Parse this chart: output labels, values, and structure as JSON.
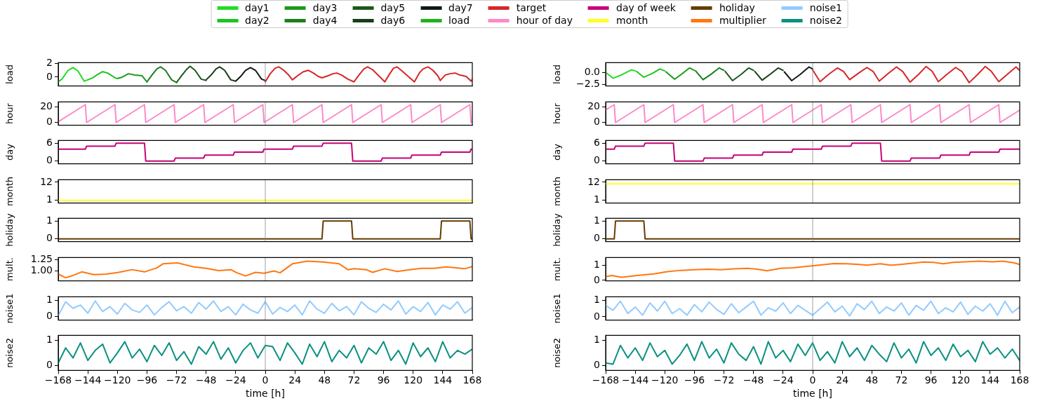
{
  "chart_data": [
    {
      "type": "line",
      "ylabel": "load",
      "legend": "top",
      "xlim": [
        -168,
        168
      ],
      "tick_labels": "y",
      "ylim": [
        -1.3,
        2.12
      ],
      "yticks": [
        0,
        2
      ],
      "ref_lines": [
        {
          "axis": "x",
          "value": 0,
          "color": "#888888"
        }
      ],
      "series": [
        {
          "name": "day1",
          "color": "#22dd22",
          "x": [
            -168,
            -165,
            -160,
            -156,
            -152,
            -147,
            -144
          ],
          "values": [
            -0.7,
            -0.3,
            1.0,
            1.4,
            0.9,
            -0.6,
            -0.4
          ]
        },
        {
          "name": "day2",
          "color": "#1ec41e",
          "x": [
            -144,
            -140,
            -136,
            -132,
            -128,
            -122,
            -120
          ],
          "values": [
            -0.4,
            -0.1,
            0.4,
            0.8,
            0.6,
            -0.1,
            -0.2
          ]
        },
        {
          "name": "day3",
          "color": "#1a9a1a",
          "x": [
            -120,
            -116,
            -111,
            -106,
            -100,
            -96
          ],
          "values": [
            -0.2,
            0.0,
            0.5,
            0.3,
            0.2,
            -0.7
          ]
        },
        {
          "name": "day4",
          "color": "#1b7f1b",
          "x": [
            -96,
            -92,
            -88,
            -85,
            -81,
            -76,
            -72
          ],
          "values": [
            -0.7,
            0.3,
            1.2,
            1.5,
            1.0,
            -0.4,
            -0.8
          ]
        },
        {
          "name": "day5",
          "color": "#1a5a1a",
          "x": [
            -72,
            -68,
            -64,
            -61,
            -57,
            -52,
            -48
          ],
          "values": [
            -0.8,
            0.2,
            1.1,
            1.6,
            1.0,
            -0.3,
            -0.5
          ]
        },
        {
          "name": "day6",
          "color": "#163f16",
          "x": [
            -48,
            -44,
            -40,
            -37,
            -33,
            -28,
            -24
          ],
          "values": [
            -0.4,
            0.3,
            1.2,
            1.5,
            1.0,
            -0.4,
            -0.6
          ]
        },
        {
          "name": "day7",
          "color": "#111a11",
          "x": [
            -24,
            -20,
            -16,
            -12,
            -8,
            -3,
            0
          ],
          "values": [
            -0.6,
            0.1,
            1.0,
            1.4,
            1.0,
            -0.3,
            -0.5
          ]
        },
        {
          "name": "load",
          "color": "#1db31d"
        },
        {
          "name": "target",
          "color": "#d62728",
          "x": [
            0,
            4,
            8,
            11,
            15,
            19,
            22,
            27,
            31,
            35,
            39,
            43,
            46,
            51,
            55,
            58,
            62,
            67,
            72,
            76,
            80,
            83,
            87,
            92,
            97,
            101,
            104,
            107,
            111,
            116,
            121,
            125,
            128,
            132,
            136,
            140,
            142,
            146,
            150,
            154,
            158,
            163,
            167,
            168
          ],
          "values": [
            -0.7,
            0.5,
            1.3,
            1.5,
            1.0,
            0.3,
            -0.4,
            0.3,
            0.8,
            1.0,
            0.6,
            0.1,
            -0.1,
            0.2,
            0.5,
            0.6,
            0.3,
            -0.3,
            -0.7,
            0.3,
            1.2,
            1.5,
            1.1,
            0.2,
            -0.7,
            0.5,
            1.3,
            1.5,
            0.9,
            0.1,
            -0.7,
            0.6,
            1.2,
            1.5,
            1.0,
            0.2,
            -0.5,
            0.3,
            0.5,
            0.6,
            0.3,
            0.1,
            -0.6,
            -0.3
          ]
        }
      ]
    },
    {
      "type": "line",
      "ylabel": "hour",
      "xlim": [
        -168,
        168
      ],
      "tick_labels": "y",
      "ylim": [
        -3.5,
        26.5
      ],
      "yticks": [
        0,
        20
      ],
      "ref_lines": [
        {
          "axis": "x",
          "value": 0,
          "color": "#888888"
        }
      ],
      "series": [
        {
          "name": "hour of day",
          "color": "#ff88c8",
          "x": [
            -168,
            -146,
            -145,
            -122,
            -121,
            -98,
            -97,
            -74,
            -73,
            -50,
            -49,
            -26,
            -25,
            -2,
            -1,
            22,
            23,
            46,
            47,
            70,
            71,
            94,
            95,
            118,
            119,
            142,
            143,
            166,
            167,
            168
          ],
          "values": [
            1,
            23,
            0,
            23,
            0,
            23,
            0,
            23,
            0,
            23,
            0,
            23,
            0,
            23,
            0,
            23,
            0,
            23,
            0,
            23,
            0,
            23,
            0,
            23,
            0,
            23,
            0,
            23,
            0,
            1
          ]
        }
      ]
    },
    {
      "type": "line",
      "ylabel": "day",
      "xlim": [
        -168,
        168
      ],
      "tick_labels": "y",
      "ylim": [
        -0.9,
        6.9
      ],
      "yticks": [
        0,
        6
      ],
      "ref_lines": [
        {
          "axis": "x",
          "value": 0,
          "color": "#888888"
        }
      ],
      "series": [
        {
          "name": "day of week",
          "color": "#c9007a",
          "x": [
            -168,
            -146,
            -145,
            -122,
            -121,
            -98,
            -97,
            -74,
            -73,
            -50,
            -49,
            -26,
            -25,
            -2,
            -1,
            22,
            23,
            46,
            47,
            70,
            71,
            94,
            95,
            118,
            119,
            142,
            143,
            166,
            167,
            168
          ],
          "values": [
            4,
            4,
            5,
            5,
            6,
            6,
            0,
            0,
            1,
            1,
            2,
            2,
            3,
            3,
            4,
            4,
            5,
            5,
            6,
            6,
            0,
            0,
            1,
            1,
            2,
            2,
            3,
            3,
            4,
            4
          ]
        }
      ]
    },
    {
      "type": "line",
      "ylabel": "month",
      "xlim": [
        -168,
        168
      ],
      "tick_labels": "y",
      "ylim": [
        -0.6,
        13.5
      ],
      "yticks": [
        1,
        12
      ],
      "ref_lines": [
        {
          "axis": "x",
          "value": 0,
          "color": "#888888"
        }
      ],
      "series": [
        {
          "name": "month",
          "color": "#ffff22",
          "x": [
            -168,
            168
          ],
          "values": [
            1,
            1
          ]
        }
      ]
    },
    {
      "type": "line",
      "ylabel": "holiday",
      "xlim": [
        -168,
        168
      ],
      "tick_labels": "y",
      "ylim": [
        -0.15,
        1.15
      ],
      "yticks": [
        0,
        1
      ],
      "ref_lines": [
        {
          "axis": "x",
          "value": 0,
          "color": "#888888"
        }
      ],
      "series": [
        {
          "name": "holiday",
          "color": "#653c00",
          "x": [
            -168,
            46,
            47,
            70,
            71,
            142,
            143,
            166,
            167,
            168
          ],
          "values": [
            0,
            0,
            1,
            1,
            0,
            0,
            1,
            1,
            0,
            0
          ]
        }
      ]
    },
    {
      "type": "line",
      "ylabel": "mult.",
      "xlim": [
        -168,
        168
      ],
      "tick_labels": "y",
      "ylim": [
        0.78,
        1.3
      ],
      "yticks": [
        {
          "value": 1,
          "label": "1.00"
        },
        {
          "value": 1.25,
          "label": "1.25"
        }
      ],
      "ref_lines": [
        {
          "axis": "x",
          "value": 0,
          "color": "#888888"
        }
      ],
      "series": [
        {
          "name": "multiplier",
          "color": "#ff7711",
          "x": [
            -168,
            -162,
            -157,
            -149,
            -139,
            -129,
            -119,
            -108,
            -98,
            -88,
            -83,
            -71,
            -58,
            -48,
            -38,
            -28,
            -23,
            -16,
            -8,
            -1,
            7,
            12,
            22,
            34,
            47,
            60,
            67,
            72,
            82,
            87,
            97,
            107,
            117,
            127,
            137,
            147,
            162,
            168
          ],
          "values": [
            0.93,
            0.85,
            0.89,
            0.98,
            0.92,
            0.93,
            0.97,
            1.03,
            0.98,
            1.07,
            1.16,
            1.18,
            1.09,
            1.06,
            1.01,
            1.03,
            0.96,
            0.89,
            0.97,
            0.95,
            1.0,
            0.96,
            1.16,
            1.22,
            1.2,
            1.16,
            1.03,
            1.05,
            1.03,
            0.97,
            1.05,
            0.99,
            1.03,
            1.06,
            1.06,
            1.09,
            1.05,
            1.1
          ]
        }
      ]
    },
    {
      "type": "line",
      "ylabel": "noise1",
      "xlim": [
        -168,
        168
      ],
      "tick_labels": "y",
      "ylim": [
        -0.22,
        1.2
      ],
      "yticks": [
        0,
        1
      ],
      "ref_lines": [
        {
          "axis": "x",
          "value": 0,
          "color": "#888888"
        }
      ],
      "x": [
        -168,
        -162,
        -156,
        -150,
        -144,
        -138,
        -132,
        -126,
        -120,
        -114,
        -108,
        -102,
        -96,
        -90,
        -84,
        -78,
        -72,
        -66,
        -60,
        -54,
        -48,
        -42,
        -36,
        -30,
        -24,
        -18,
        -12,
        -6,
        0,
        6,
        12,
        18,
        24,
        30,
        36,
        42,
        48,
        54,
        60,
        66,
        72,
        78,
        84,
        90,
        96,
        102,
        108,
        114,
        120,
        126,
        132,
        138,
        144,
        150,
        156,
        162,
        168
      ],
      "series": [
        {
          "name": "noise1",
          "color": "#92cbff",
          "values": [
            0.05,
            0.9,
            0.5,
            0.7,
            0.2,
            0.95,
            0.3,
            0.6,
            0.15,
            0.8,
            0.4,
            0.25,
            0.7,
            0.1,
            0.55,
            0.9,
            0.35,
            0.6,
            0.2,
            0.85,
            0.45,
            0.95,
            0.3,
            0.6,
            0.1,
            0.75,
            0.4,
            0.2,
            0.9,
            0.15,
            0.55,
            0.3,
            0.7,
            0.1,
            0.95,
            0.45,
            0.2,
            0.8,
            0.35,
            0.6,
            0.1,
            0.9,
            0.5,
            0.25,
            0.75,
            0.4,
            0.95,
            0.15,
            0.6,
            0.3,
            0.85,
            0.1,
            0.7,
            0.45,
            0.9,
            0.2,
            0.55
          ]
        }
      ]
    },
    {
      "type": "line",
      "ylabel": "noise2",
      "xlabel": "time [h]",
      "xlim": [
        -168,
        168
      ],
      "xticks": [
        {
          "value": -168,
          "label": "−168"
        },
        {
          "value": -144,
          "label": "−144"
        },
        {
          "value": -120,
          "label": "−120"
        },
        {
          "value": -96,
          "label": "−96"
        },
        {
          "value": -72,
          "label": "−72"
        },
        {
          "value": -48,
          "label": "−48"
        },
        {
          "value": -24,
          "label": "−24"
        },
        0,
        24,
        48,
        72,
        96,
        120,
        144,
        168
      ],
      "ylim": [
        -0.2,
        1.2
      ],
      "yticks": [
        0,
        1
      ],
      "ref_lines": [
        {
          "axis": "x",
          "value": 0,
          "color": "#888888"
        }
      ],
      "x": [
        -168,
        -162,
        -156,
        -150,
        -144,
        -138,
        -132,
        -126,
        -120,
        -114,
        -108,
        -102,
        -96,
        -90,
        -84,
        -78,
        -72,
        -66,
        -60,
        -54,
        -48,
        -42,
        -36,
        -30,
        -24,
        -18,
        -12,
        -6,
        0,
        6,
        12,
        18,
        24,
        30,
        36,
        42,
        48,
        54,
        60,
        66,
        72,
        78,
        84,
        90,
        96,
        102,
        108,
        114,
        120,
        126,
        132,
        138,
        144,
        150,
        156,
        162,
        168
      ],
      "series": [
        {
          "name": "noise2",
          "color": "#0a9080",
          "values": [
            0.1,
            0.7,
            0.3,
            0.9,
            0.2,
            0.6,
            0.85,
            0.1,
            0.5,
            0.95,
            0.3,
            0.65,
            0.15,
            0.8,
            0.4,
            0.9,
            0.2,
            0.55,
            0.05,
            0.75,
            0.45,
            0.95,
            0.25,
            0.7,
            0.1,
            0.6,
            0.9,
            0.3,
            0.8,
            0.75,
            0.2,
            0.9,
            0.5,
            0.05,
            0.85,
            0.35,
            0.95,
            0.15,
            0.6,
            0.3,
            0.8,
            0.1,
            0.7,
            0.45,
            0.95,
            0.2,
            0.6,
            0.05,
            0.9,
            0.35,
            0.7,
            0.15,
            0.95,
            0.3,
            0.6,
            0.45,
            0.65
          ]
        }
      ]
    },
    {
      "type": "line",
      "ylabel": "load",
      "xlim": [
        -168,
        168
      ],
      "tick_labels": "y",
      "ylim": [
        -2.78,
        1.98
      ],
      "yticks": [
        {
          "value": -2.5,
          "label": "−2.5"
        },
        {
          "value": 0,
          "label": "0.0"
        }
      ],
      "ref_lines": [
        {
          "axis": "x",
          "value": 0,
          "color": "#888888"
        }
      ],
      "series": [
        {
          "color": "#22dd22",
          "x": [
            -168,
            -162,
            -155,
            -147,
            -144
          ],
          "values": [
            0.0,
            -1.2,
            -0.5,
            0.5,
            0.3
          ]
        },
        {
          "color": "#1ec41e",
          "x": [
            -143,
            -137,
            -130,
            -124,
            -120
          ],
          "values": [
            0.2,
            -1.0,
            -0.2,
            0.7,
            0.3
          ]
        },
        {
          "color": "#1a9a1a",
          "x": [
            -119,
            -112,
            -106,
            -100,
            -96
          ],
          "values": [
            0.1,
            -1.4,
            -0.3,
            0.9,
            0.4
          ]
        },
        {
          "color": "#1b7f1b",
          "x": [
            -95,
            -89,
            -82,
            -76,
            -72
          ],
          "values": [
            0.3,
            -1.5,
            -0.3,
            0.9,
            0.4
          ]
        },
        {
          "color": "#1a5a1a",
          "x": [
            -71,
            -65,
            -58,
            -52,
            -48
          ],
          "values": [
            0.2,
            -1.7,
            -0.4,
            0.9,
            0.4
          ]
        },
        {
          "color": "#163f16",
          "x": [
            -47,
            -41,
            -34,
            -28,
            -24
          ],
          "values": [
            0.2,
            -1.6,
            -0.3,
            0.9,
            0.4
          ]
        },
        {
          "color": "#111a11",
          "x": [
            -23,
            -17,
            -10,
            -3,
            0
          ],
          "values": [
            0.1,
            -1.7,
            -0.4,
            1.1,
            0.7
          ]
        },
        {
          "color": "#d62728",
          "x": [
            0,
            6,
            13,
            20,
            25,
            30,
            37,
            44,
            49,
            54,
            61,
            68,
            73,
            79,
            86,
            92,
            97,
            102,
            109,
            116,
            121,
            127,
            134,
            140,
            145,
            151,
            158,
            165,
            168
          ],
          "values": [
            0.5,
            -1.9,
            -0.4,
            0.9,
            0.2,
            -1.5,
            -0.2,
            1.0,
            0.2,
            -1.8,
            -0.3,
            1.1,
            0.2,
            -2.0,
            -0.4,
            1.2,
            0.2,
            -1.9,
            -0.4,
            1.0,
            0.2,
            -2.1,
            -0.4,
            1.2,
            0.2,
            -1.9,
            -0.4,
            1.1,
            0.4
          ]
        }
      ]
    },
    {
      "type": "line",
      "ylabel": "hour",
      "xlim": [
        -168,
        168
      ],
      "tick_labels": "y",
      "ylim": [
        -3.5,
        26.5
      ],
      "yticks": [
        0,
        20
      ],
      "ref_lines": [
        {
          "axis": "x",
          "value": 0,
          "color": "#888888"
        }
      ],
      "series": [
        {
          "color": "#ff88c8",
          "x": [
            -168,
            -161,
            -160,
            -137,
            -136,
            -113,
            -112,
            -89,
            -88,
            -65,
            -64,
            -41,
            -40,
            -17,
            -16,
            7,
            8,
            31,
            32,
            55,
            56,
            79,
            80,
            103,
            104,
            127,
            128,
            151,
            152,
            168
          ],
          "values": [
            16,
            23,
            0,
            23,
            0,
            23,
            0,
            23,
            0,
            23,
            0,
            23,
            0,
            23,
            0,
            23,
            0,
            23,
            0,
            23,
            0,
            23,
            0,
            23,
            0,
            23,
            0,
            23,
            0,
            16
          ]
        }
      ]
    },
    {
      "type": "line",
      "ylabel": "day",
      "xlim": [
        -168,
        168
      ],
      "tick_labels": "y",
      "ylim": [
        -0.9,
        6.9
      ],
      "yticks": [
        0,
        6
      ],
      "ref_lines": [
        {
          "axis": "x",
          "value": 0,
          "color": "#888888"
        }
      ],
      "series": [
        {
          "color": "#c9007a",
          "x": [
            -168,
            -161,
            -160,
            -137,
            -136,
            -113,
            -112,
            -89,
            -88,
            -65,
            -64,
            -41,
            -40,
            -17,
            -16,
            7,
            8,
            31,
            32,
            55,
            56,
            79,
            80,
            103,
            104,
            127,
            128,
            151,
            152,
            168
          ],
          "values": [
            4,
            4,
            5,
            5,
            6,
            6,
            0,
            0,
            1,
            1,
            2,
            2,
            3,
            3,
            4,
            4,
            5,
            5,
            6,
            6,
            0,
            0,
            1,
            1,
            2,
            2,
            3,
            3,
            4,
            4
          ]
        }
      ]
    },
    {
      "type": "line",
      "ylabel": "month",
      "xlim": [
        -168,
        168
      ],
      "tick_labels": "y",
      "ylim": [
        -0.6,
        13.5
      ],
      "yticks": [
        1,
        12
      ],
      "ref_lines": [
        {
          "axis": "x",
          "value": 0,
          "color": "#888888"
        }
      ],
      "series": [
        {
          "color": "#ffff22",
          "x": [
            -168,
            168
          ],
          "values": [
            11,
            11
          ]
        }
      ]
    },
    {
      "type": "line",
      "ylabel": "holiday",
      "xlim": [
        -168,
        168
      ],
      "tick_labels": "y",
      "ylim": [
        -0.15,
        1.15
      ],
      "yticks": [
        0,
        1
      ],
      "ref_lines": [
        {
          "axis": "x",
          "value": 0,
          "color": "#888888"
        }
      ],
      "series": [
        {
          "color": "#653c00",
          "x": [
            -168,
            -161,
            -160,
            -137,
            -136,
            168
          ],
          "values": [
            0,
            0,
            1,
            1,
            0,
            0
          ]
        }
      ]
    },
    {
      "type": "line",
      "ylabel": "mult.",
      "xlim": [
        -168,
        168
      ],
      "tick_labels": "y",
      "ylim": [
        -0.03,
        1.5
      ],
      "yticks": [
        0,
        1
      ],
      "ref_lines": [
        {
          "axis": "x",
          "value": 0,
          "color": "#888888"
        }
      ],
      "series": [
        {
          "color": "#ff7711",
          "x": [
            -168,
            -163,
            -155,
            -145,
            -137,
            -129,
            -118,
            -107,
            -96,
            -85,
            -75,
            -64,
            -53,
            -45,
            -37,
            -26,
            -16,
            -5,
            1,
            9,
            17,
            28,
            38,
            44,
            55,
            63,
            71,
            81,
            90,
            98,
            106,
            114,
            124,
            135,
            146,
            154,
            163,
            168
          ],
          "values": [
            0.24,
            0.32,
            0.21,
            0.3,
            0.37,
            0.42,
            0.57,
            0.66,
            0.7,
            0.74,
            0.7,
            0.76,
            0.79,
            0.74,
            0.63,
            0.79,
            0.83,
            0.92,
            0.97,
            1.03,
            1.1,
            1.09,
            1.05,
            1.0,
            1.09,
            1.0,
            1.05,
            1.13,
            1.21,
            1.18,
            1.09,
            1.18,
            1.22,
            1.26,
            1.22,
            1.26,
            1.16,
            1.05
          ]
        }
      ]
    },
    {
      "type": "line",
      "ylabel": "noise1",
      "xlim": [
        -168,
        168
      ],
      "tick_labels": "y",
      "ylim": [
        -0.2,
        1.22
      ],
      "yticks": [
        0,
        1
      ],
      "ref_lines": [
        {
          "axis": "x",
          "value": 0,
          "color": "#888888"
        }
      ],
      "x": [
        -168,
        -162,
        -156,
        -150,
        -144,
        -138,
        -132,
        -126,
        -120,
        -114,
        -108,
        -102,
        -96,
        -90,
        -84,
        -78,
        -72,
        -66,
        -60,
        -54,
        -48,
        -42,
        -36,
        -30,
        -24,
        -18,
        -12,
        -6,
        0,
        6,
        12,
        18,
        24,
        30,
        36,
        42,
        48,
        54,
        60,
        66,
        72,
        78,
        84,
        90,
        96,
        102,
        108,
        114,
        120,
        126,
        132,
        138,
        144,
        150,
        156,
        162,
        168
      ],
      "series": [
        {
          "color": "#92cbff",
          "values": [
            0.7,
            0.4,
            0.95,
            0.2,
            0.6,
            0.1,
            0.85,
            0.35,
            0.95,
            0.2,
            0.5,
            0.1,
            0.75,
            0.3,
            0.9,
            0.45,
            0.15,
            0.8,
            0.25,
            0.6,
            0.95,
            0.1,
            0.55,
            0.35,
            0.85,
            0.2,
            0.7,
            0.4,
            0.1,
            0.5,
            0.9,
            0.3,
            0.65,
            0.05,
            0.8,
            0.45,
            0.95,
            0.2,
            0.6,
            0.35,
            0.85,
            0.1,
            0.7,
            0.4,
            0.95,
            0.2,
            0.55,
            0.3,
            0.9,
            0.15,
            0.65,
            0.35,
            0.8,
            0.1,
            0.95,
            0.25,
            0.6
          ]
        }
      ]
    },
    {
      "type": "line",
      "ylabel": "noise2",
      "xlabel": "time [h]",
      "xlim": [
        -168,
        168
      ],
      "xticks": [
        {
          "value": -168,
          "label": "−168"
        },
        {
          "value": -144,
          "label": "−144"
        },
        {
          "value": -120,
          "label": "−120"
        },
        {
          "value": -96,
          "label": "−96"
        },
        {
          "value": -72,
          "label": "−72"
        },
        {
          "value": -48,
          "label": "−48"
        },
        {
          "value": -24,
          "label": "−24"
        },
        0,
        24,
        48,
        72,
        96,
        120,
        144,
        168
      ],
      "ylim": [
        -0.2,
        1.2
      ],
      "yticks": [
        0,
        1
      ],
      "ref_lines": [
        {
          "axis": "x",
          "value": 0,
          "color": "#888888"
        }
      ],
      "x": [
        -168,
        -162,
        -156,
        -150,
        -144,
        -138,
        -132,
        -126,
        -120,
        -114,
        -108,
        -102,
        -96,
        -90,
        -84,
        -78,
        -72,
        -66,
        -60,
        -54,
        -48,
        -42,
        -36,
        -30,
        -24,
        -18,
        -12,
        -6,
        0,
        6,
        12,
        18,
        24,
        30,
        36,
        42,
        48,
        54,
        60,
        66,
        72,
        78,
        84,
        90,
        96,
        102,
        108,
        114,
        120,
        126,
        132,
        138,
        144,
        150,
        156,
        162,
        168
      ],
      "series": [
        {
          "color": "#0a9080",
          "values": [
            0.1,
            0.05,
            0.8,
            0.3,
            0.7,
            0.2,
            0.9,
            0.35,
            0.6,
            0.05,
            0.4,
            0.85,
            0.2,
            0.95,
            0.3,
            0.65,
            0.1,
            0.9,
            0.45,
            0.2,
            0.75,
            0.05,
            0.95,
            0.3,
            0.6,
            0.15,
            0.85,
            0.4,
            0.9,
            0.2,
            0.55,
            0.1,
            0.95,
            0.35,
            0.7,
            0.2,
            0.8,
            0.45,
            0.15,
            0.9,
            0.3,
            0.65,
            0.1,
            0.95,
            0.4,
            0.7,
            0.2,
            0.85,
            0.35,
            0.6,
            0.15,
            0.95,
            0.45,
            0.7,
            0.3,
            0.65,
            0.2
          ]
        }
      ]
    }
  ]
}
